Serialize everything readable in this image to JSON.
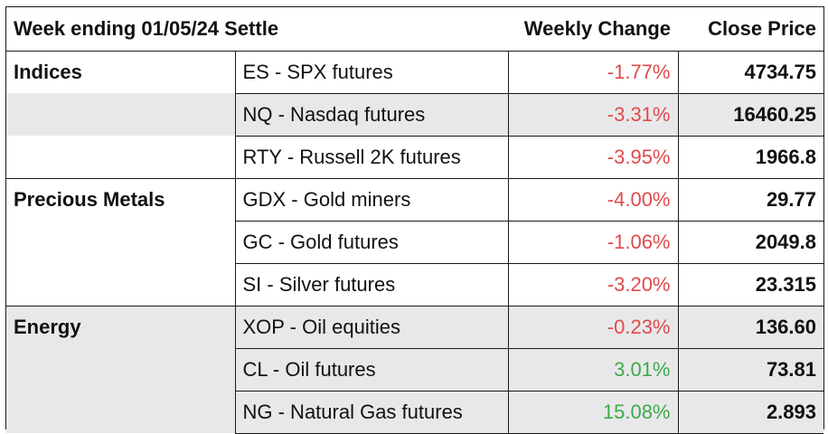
{
  "table": {
    "header": {
      "title": "Week ending 01/05/24 Settle",
      "weekly_change": "Weekly Change",
      "close_price": "Close Price"
    },
    "rows": [
      {
        "category": "Indices",
        "instrument": "ES - SPX futures",
        "change": "-1.77%",
        "close": "4734.75",
        "direction": "negative"
      },
      {
        "category": "",
        "instrument": "NQ - Nasdaq futures",
        "change": "-3.31%",
        "close": "16460.25",
        "direction": "negative"
      },
      {
        "category": "",
        "instrument": "RTY - Russell 2K futures",
        "change": "-3.95%",
        "close": "1966.8",
        "direction": "negative"
      },
      {
        "category": "Precious Metals",
        "instrument": "GDX - Gold miners",
        "change": "-4.00%",
        "close": "29.77",
        "direction": "negative"
      },
      {
        "category": "",
        "instrument": "GC - Gold futures",
        "change": "-1.06%",
        "close": "2049.8",
        "direction": "negative"
      },
      {
        "category": "",
        "instrument": "SI - Silver futures",
        "change": "-3.20%",
        "close": "23.315",
        "direction": "negative"
      },
      {
        "category": "Energy",
        "instrument": "XOP - Oil equities",
        "change": "-0.23%",
        "close": "136.60",
        "direction": "negative"
      },
      {
        "category": "",
        "instrument": "CL - Oil futures",
        "change": "3.01%",
        "close": "73.81",
        "direction": "positive"
      },
      {
        "category": "",
        "instrument": "NG - Natural Gas futures",
        "change": "15.08%",
        "close": "2.893",
        "direction": "positive"
      }
    ],
    "colors": {
      "negative": "#e04a4a",
      "positive": "#3faa4a",
      "shade": "#e8e8ea",
      "border": "#1a1a1a"
    }
  }
}
